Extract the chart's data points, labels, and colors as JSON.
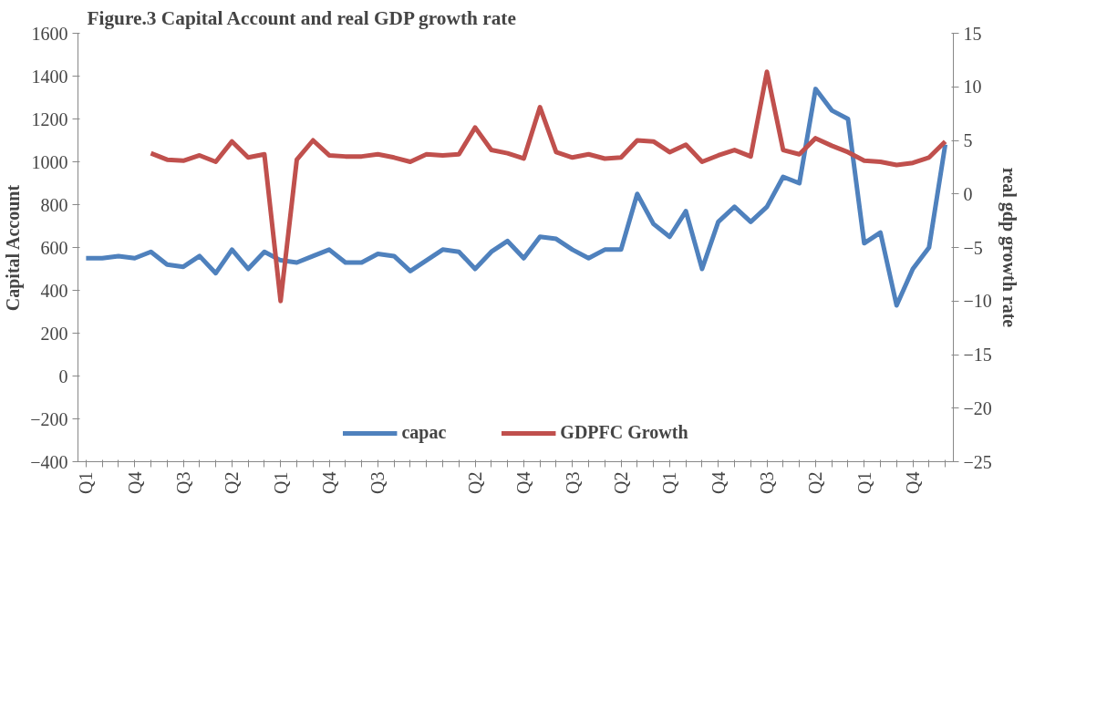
{
  "chart_data": {
    "type": "line",
    "title": "Figure.3 Capital Account and real GDP growth rate",
    "ylabel": "Capital Account",
    "y2label": "real gdp growth rate",
    "categories": [
      "Q1",
      null,
      null,
      "Q4",
      null,
      null,
      "Q3",
      null,
      null,
      "Q2",
      null,
      null,
      "Q1",
      null,
      null,
      "Q4",
      null,
      null,
      "Q3",
      null,
      null,
      null,
      null,
      null,
      "Q2",
      null,
      null,
      "Q4",
      null,
      null,
      "Q3",
      null,
      null,
      "Q2",
      null,
      null,
      "Q1",
      null,
      null,
      "Q4",
      null,
      null,
      "Q3",
      null,
      null,
      "Q2",
      null,
      null,
      "Q1",
      null,
      null,
      "Q4",
      null,
      null
    ],
    "series": [
      {
        "name": "capac",
        "color": "#4f81bd",
        "values": [
          550,
          550,
          560,
          550,
          580,
          520,
          510,
          560,
          480,
          590,
          500,
          580,
          540,
          530,
          560,
          590,
          530,
          530,
          570,
          560,
          490,
          540,
          590,
          580,
          500,
          580,
          630,
          550,
          650,
          640,
          590,
          550,
          590,
          590,
          850,
          710,
          650,
          770,
          500,
          720,
          790,
          720,
          790,
          930,
          900,
          1340,
          1240,
          1200,
          620,
          670,
          330,
          500,
          600,
          1080
        ]
      },
      {
        "name": "GDPFC Growth",
        "color": "#c0504d",
        "axis": "y2",
        "values": [
          null,
          null,
          null,
          null,
          3.8,
          3.2,
          3.1,
          3.6,
          3.0,
          4.9,
          3.4,
          3.7,
          -10.0,
          3.2,
          5.0,
          3.6,
          3.5,
          3.5,
          3.7,
          3.4,
          3.0,
          3.7,
          3.6,
          3.7,
          6.2,
          4.1,
          3.8,
          3.3,
          8.1,
          3.9,
          3.4,
          3.7,
          3.3,
          3.4,
          5.0,
          4.9,
          3.9,
          4.6,
          3.0,
          3.6,
          4.1,
          3.5,
          11.4,
          4.1,
          3.7,
          5.2,
          4.5,
          3.9,
          3.1,
          3.0,
          2.7,
          2.9,
          3.4,
          4.9
        ]
      }
    ],
    "ylim": [
      -400,
      1600
    ],
    "yticks": [
      -400,
      -200,
      0,
      200,
      400,
      600,
      800,
      1000,
      1200,
      1400,
      1600
    ],
    "y2lim": [
      -25,
      15
    ],
    "y2ticks": [
      -25,
      -20,
      -15,
      -10,
      -5,
      0,
      5,
      10,
      15
    ],
    "grid": false,
    "legend": "bottom",
    "line_style": "solid",
    "marker": "none"
  }
}
